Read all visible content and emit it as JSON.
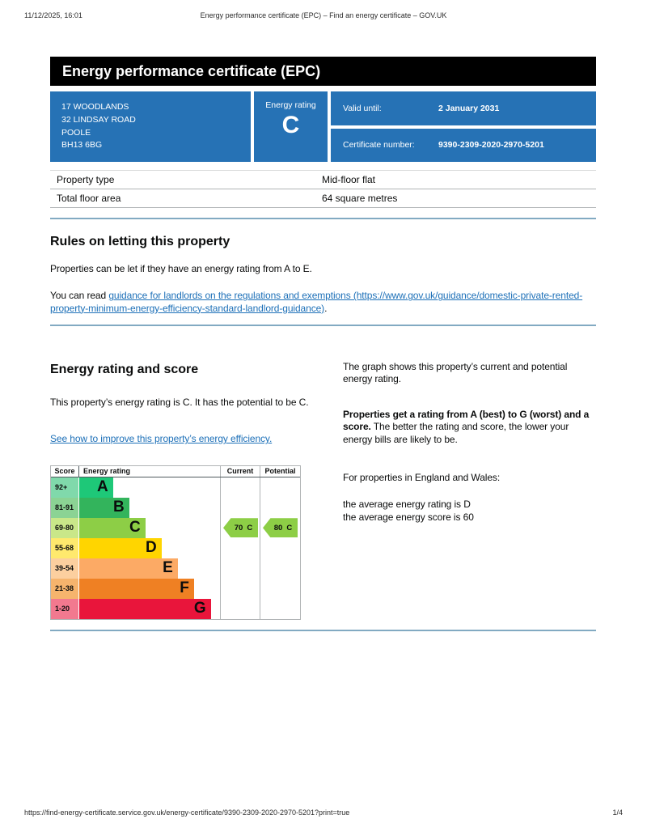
{
  "print_header": {
    "datetime": "11/12/2025, 16:01",
    "title": "Energy performance certificate (EPC) – Find an energy certificate – GOV.UK"
  },
  "banner": {
    "title": "Energy performance certificate (EPC)"
  },
  "summary": {
    "address_lines": [
      "17 WOODLANDS",
      "32 LINDSAY ROAD",
      "POOLE",
      "BH13 6BG"
    ],
    "energy_rating_label": "Energy rating",
    "energy_rating": "C",
    "valid_until_label": "Valid until:",
    "valid_until": "2 January 2031",
    "certificate_number_label": "Certificate number:",
    "certificate_number": "9390-2309-2020-2970-5201"
  },
  "property_details": {
    "rows": [
      {
        "label": "Property type",
        "value": "Mid-floor flat"
      },
      {
        "label": "Total floor area",
        "value": "64 square metres"
      }
    ]
  },
  "rules_section": {
    "heading": "Rules on letting this property",
    "paragraph1": "Properties can be let if they have an energy rating from A to E.",
    "paragraph2_prefix": "You can read ",
    "link_text": "guidance for landlords on the regulations and exemptions (https://www.gov.uk/guidance/domestic-private-rented-property-minimum-energy-efficiency-standard-landlord-guidance)",
    "paragraph2_suffix": "."
  },
  "rating_section": {
    "heading": "Energy rating and score",
    "paragraph1": "This property’s energy rating is C. It has the potential to be C.",
    "improve_link": "See how to improve this property’s energy efficiency.",
    "right": {
      "paragraph1": "The graph shows this property’s current and potential energy rating.",
      "paragraph2_bold": "Properties get a rating from A (best) to G (worst) and a score.",
      "paragraph2_rest": " The better the rating and score, the lower your energy bills are likely to be.",
      "paragraph3": "For properties in England and Wales:",
      "average_lines": [
        "the average energy rating is D",
        "the average energy score is 60"
      ]
    }
  },
  "chart_data": {
    "type": "bar",
    "title": "EPC energy rating and score graph",
    "columns": {
      "score": "Score",
      "rating": "Energy rating",
      "current": "Current",
      "potential": "Potential"
    },
    "bands": [
      {
        "letter": "A",
        "score_range": "92+",
        "color": "#1ec878",
        "tint": "#80d9ab",
        "width_pct": 24.0
      },
      {
        "letter": "B",
        "score_range": "81-91",
        "color": "#33b45c",
        "tint": "#8bd394",
        "width_pct": 35.5
      },
      {
        "letter": "C",
        "score_range": "69-80",
        "color": "#8dce46",
        "tint": "#c9e789",
        "width_pct": 47.0
      },
      {
        "letter": "D",
        "score_range": "55-68",
        "color": "#ffd500",
        "tint": "#ffe96d",
        "width_pct": 58.5
      },
      {
        "letter": "E",
        "score_range": "39-54",
        "color": "#fcaa65",
        "tint": "#fccf9f",
        "width_pct": 70.0
      },
      {
        "letter": "F",
        "score_range": "21-38",
        "color": "#ef8023",
        "tint": "#f6b46d",
        "width_pct": 81.5
      },
      {
        "letter": "G",
        "score_range": "1-20",
        "color": "#e9153b",
        "tint": "#f2798f",
        "width_pct": 93.5
      }
    ],
    "current": {
      "value": "70",
      "band": "C",
      "arrow_color": "#8dce46"
    },
    "potential": {
      "value": "80",
      "band": "C",
      "arrow_color": "#8dce46"
    }
  },
  "page_footer": {
    "url": "https://find-energy-certificate.service.gov.uk/energy-certificate/9390-2309-2020-2970-5201?print=true",
    "page": "1/4"
  }
}
